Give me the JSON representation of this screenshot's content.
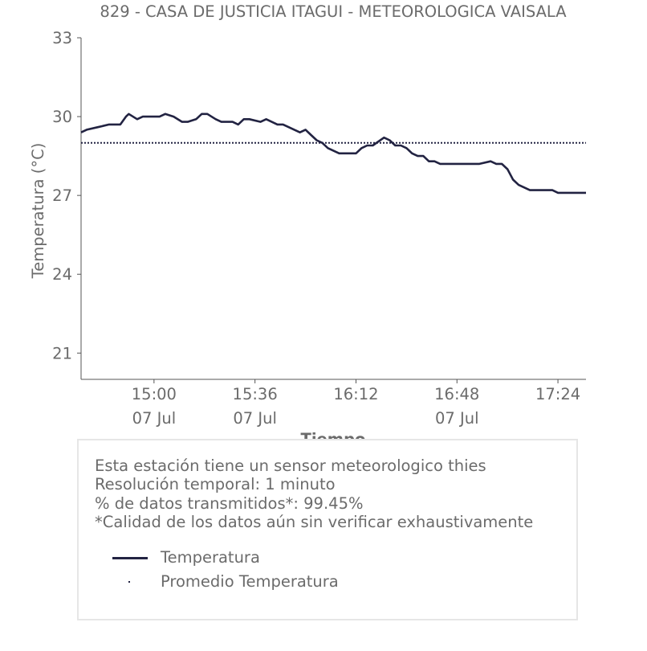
{
  "chart_data": {
    "type": "line",
    "title": "829 - CASA DE JUSTICIA ITAGUI - METEOROLOGICA VAISALA",
    "xlabel": "Tiempo",
    "ylabel": "Temperatura (°C)",
    "ylim": [
      20,
      33
    ],
    "yticks": [
      21,
      24,
      27,
      30,
      33
    ],
    "xlim": [
      "14:34",
      "17:34"
    ],
    "xticks": [
      {
        "time": "15:00",
        "label": "15:00",
        "sublabel": "07 Jul"
      },
      {
        "time": "15:36",
        "label": "15:36",
        "sublabel": "07 Jul"
      },
      {
        "time": "16:12",
        "label": "16:12",
        "sublabel": ""
      },
      {
        "time": "16:48",
        "label": "16:48",
        "sublabel": "07 Jul"
      },
      {
        "time": "17:24",
        "label": "17:24",
        "sublabel": ""
      }
    ],
    "grid": false,
    "series": [
      {
        "name": "Temperatura",
        "color": "#222342",
        "style": "solid",
        "x": [
          "14:34",
          "14:36",
          "14:40",
          "14:44",
          "14:48",
          "14:50",
          "14:51",
          "14:54",
          "14:56",
          "14:58",
          "15:02",
          "15:04",
          "15:07",
          "15:10",
          "15:12",
          "15:15",
          "15:17",
          "15:19",
          "15:22",
          "15:24",
          "15:28",
          "15:30",
          "15:32",
          "15:34",
          "15:38",
          "15:40",
          "15:44",
          "15:46",
          "15:48",
          "15:50",
          "15:52",
          "15:54",
          "15:56",
          "15:58",
          "16:00",
          "16:02",
          "16:04",
          "16:06",
          "16:08",
          "16:10",
          "16:12",
          "16:14",
          "16:16",
          "16:18",
          "16:22",
          "16:24",
          "16:26",
          "16:28",
          "16:30",
          "16:32",
          "16:34",
          "16:36",
          "16:38",
          "16:40",
          "16:42",
          "16:44",
          "16:46",
          "16:48",
          "16:50",
          "16:52",
          "16:56",
          "17:00",
          "17:02",
          "17:04",
          "17:06",
          "17:08",
          "17:10",
          "17:12",
          "17:14",
          "17:18",
          "17:20",
          "17:22",
          "17:24",
          "17:28",
          "17:34"
        ],
        "values": [
          29.4,
          29.5,
          29.6,
          29.7,
          29.7,
          30.0,
          30.1,
          29.9,
          30.0,
          30.0,
          30.0,
          30.1,
          30.0,
          29.8,
          29.8,
          29.9,
          30.1,
          30.1,
          29.9,
          29.8,
          29.8,
          29.7,
          29.9,
          29.9,
          29.8,
          29.9,
          29.7,
          29.7,
          29.6,
          29.5,
          29.4,
          29.5,
          29.3,
          29.1,
          29.0,
          28.8,
          28.7,
          28.6,
          28.6,
          28.6,
          28.6,
          28.8,
          28.9,
          28.9,
          29.2,
          29.1,
          28.9,
          28.9,
          28.8,
          28.6,
          28.5,
          28.5,
          28.3,
          28.3,
          28.2,
          28.2,
          28.2,
          28.2,
          28.2,
          28.2,
          28.2,
          28.3,
          28.2,
          28.2,
          28.0,
          27.6,
          27.4,
          27.3,
          27.2,
          27.2,
          27.2,
          27.2,
          27.1,
          27.1,
          27.1
        ]
      },
      {
        "name": "Promedio Temperatura",
        "color": "#222342",
        "style": "dotted",
        "x": [
          "14:34",
          "17:34"
        ],
        "values": [
          29.0,
          29.0
        ]
      }
    ],
    "legend_position": "bottom"
  },
  "info": {
    "lines": [
      "Esta estación tiene un sensor meteorologico thies",
      "Resolución temporal: 1 minuto",
      "% de datos transmitidos*: 99.45%",
      "*Calidad de los datos aún sin verificar exhaustivamente"
    ]
  }
}
